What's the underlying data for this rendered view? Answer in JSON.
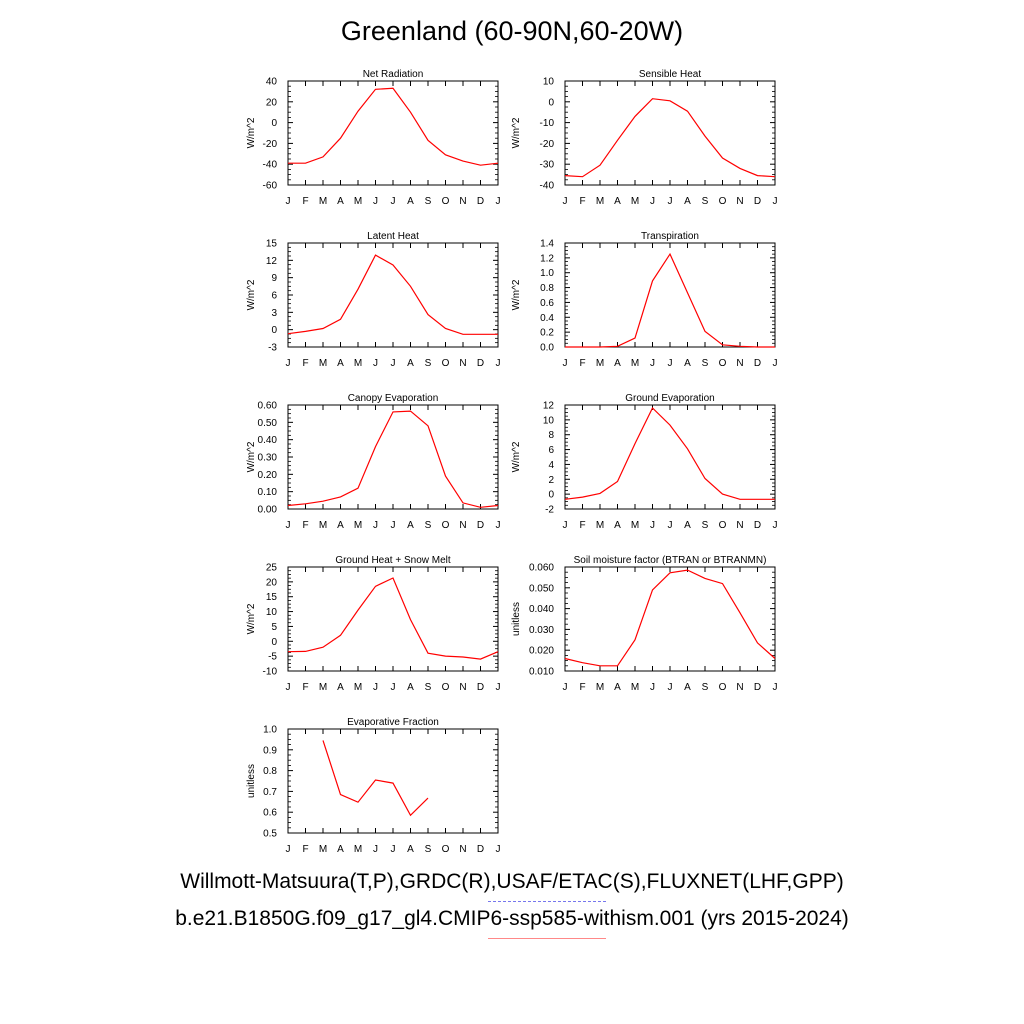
{
  "title": "Greenland (60-90N,60-20W)",
  "footer_line1": "Willmott-Matsuura(T,P),GRDC(R),USAF/ETAC(S),FLUXNET(LHF,GPP)",
  "footer_line2": "b.e21.B1850G.f09_g17_gl4.CMIP6-ssp585-withism.001 (yrs 2015-2024)",
  "line_color": "#ff0000",
  "legend_dash_colors": [
    "#7777ee",
    "#ff8888"
  ],
  "chart_data": [
    {
      "type": "line",
      "title": "Net Radiation",
      "ylabel": "W/m^2",
      "ylim": [
        -60,
        40
      ],
      "yticks": [
        {
          "v": 40,
          "t": "40"
        },
        {
          "v": 20,
          "t": "20"
        },
        {
          "v": 0,
          "t": "0"
        },
        {
          "v": -20,
          "t": "-20"
        },
        {
          "v": -40,
          "t": "-40"
        },
        {
          "v": -60,
          "t": "-60"
        }
      ],
      "categories": [
        "J",
        "F",
        "M",
        "A",
        "M",
        "J",
        "J",
        "A",
        "S",
        "O",
        "N",
        "D",
        "J"
      ],
      "values": [
        -39,
        -39,
        -33,
        -15,
        11,
        32,
        33,
        10,
        -17,
        -31,
        -37,
        -41,
        -39
      ]
    },
    {
      "type": "line",
      "title": "Sensible Heat",
      "ylabel": "W/m^2",
      "ylim": [
        -40,
        10
      ],
      "yticks": [
        {
          "v": 10,
          "t": "10"
        },
        {
          "v": 0,
          "t": "0"
        },
        {
          "v": -10,
          "t": "-10"
        },
        {
          "v": -20,
          "t": "-20"
        },
        {
          "v": -30,
          "t": "-30"
        },
        {
          "v": -40,
          "t": "-40"
        }
      ],
      "categories": [
        "J",
        "F",
        "M",
        "A",
        "M",
        "J",
        "J",
        "A",
        "S",
        "O",
        "N",
        "D",
        "J"
      ],
      "values": [
        -35.5,
        -36,
        -30.5,
        -18.5,
        -7,
        1.5,
        0.5,
        -4.5,
        -16.5,
        -27,
        -32,
        -35.5,
        -36
      ]
    },
    {
      "type": "line",
      "title": "Latent Heat",
      "ylabel": "W/m^2",
      "ylim": [
        -3,
        15
      ],
      "yticks": [
        {
          "v": 15,
          "t": "15"
        },
        {
          "v": 12,
          "t": "12"
        },
        {
          "v": 9,
          "t": "9"
        },
        {
          "v": 6,
          "t": "6"
        },
        {
          "v": 3,
          "t": "3"
        },
        {
          "v": 0,
          "t": "0"
        },
        {
          "v": -3,
          "t": "-3"
        }
      ],
      "categories": [
        "J",
        "F",
        "M",
        "A",
        "M",
        "J",
        "J",
        "A",
        "S",
        "O",
        "N",
        "D",
        "J"
      ],
      "values": [
        -0.7,
        -0.3,
        0.2,
        1.8,
        7,
        12.9,
        11.2,
        7.5,
        2.6,
        0.2,
        -0.8,
        -0.8,
        -0.8
      ]
    },
    {
      "type": "line",
      "title": "Transpiration",
      "ylabel": "W/m^2",
      "ylim": [
        0,
        1.4
      ],
      "yticks": [
        {
          "v": 1.4,
          "t": "1.4"
        },
        {
          "v": 1.2,
          "t": "1.2"
        },
        {
          "v": 1.0,
          "t": "1.0"
        },
        {
          "v": 0.8,
          "t": "0.8"
        },
        {
          "v": 0.6,
          "t": "0.6"
        },
        {
          "v": 0.4,
          "t": "0.4"
        },
        {
          "v": 0.2,
          "t": "0.2"
        },
        {
          "v": 0.0,
          "t": "0.0"
        }
      ],
      "categories": [
        "J",
        "F",
        "M",
        "A",
        "M",
        "J",
        "J",
        "A",
        "S",
        "O",
        "N",
        "D",
        "J"
      ],
      "values": [
        0.0,
        0.0,
        0.0,
        0.01,
        0.12,
        0.89,
        1.25,
        0.73,
        0.21,
        0.03,
        0.01,
        0.0,
        0.0
      ]
    },
    {
      "type": "line",
      "title": "Canopy Evaporation",
      "ylabel": "W/m^2",
      "ylim": [
        0,
        0.6
      ],
      "yticks": [
        {
          "v": 0.6,
          "t": "0.60"
        },
        {
          "v": 0.5,
          "t": "0.50"
        },
        {
          "v": 0.4,
          "t": "0.40"
        },
        {
          "v": 0.3,
          "t": "0.30"
        },
        {
          "v": 0.2,
          "t": "0.20"
        },
        {
          "v": 0.1,
          "t": "0.10"
        },
        {
          "v": 0.0,
          "t": "0.00"
        }
      ],
      "categories": [
        "J",
        "F",
        "M",
        "A",
        "M",
        "J",
        "J",
        "A",
        "S",
        "O",
        "N",
        "D",
        "J"
      ],
      "values": [
        0.02,
        0.03,
        0.045,
        0.07,
        0.12,
        0.36,
        0.56,
        0.565,
        0.48,
        0.19,
        0.035,
        0.01,
        0.02
      ]
    },
    {
      "type": "line",
      "title": "Ground Evaporation",
      "ylabel": "W/m^2",
      "ylim": [
        -2,
        12
      ],
      "yticks": [
        {
          "v": 12,
          "t": "12"
        },
        {
          "v": 10,
          "t": "10"
        },
        {
          "v": 8,
          "t": "8"
        },
        {
          "v": 6,
          "t": "6"
        },
        {
          "v": 4,
          "t": "4"
        },
        {
          "v": 2,
          "t": "2"
        },
        {
          "v": 0,
          "t": "0"
        },
        {
          "v": -2,
          "t": "-2"
        }
      ],
      "categories": [
        "J",
        "F",
        "M",
        "A",
        "M",
        "J",
        "J",
        "A",
        "S",
        "O",
        "N",
        "D",
        "J"
      ],
      "values": [
        -0.7,
        -0.4,
        0.1,
        1.7,
        6.8,
        11.6,
        9.3,
        6.1,
        2.1,
        0.0,
        -0.7,
        -0.7,
        -0.7
      ]
    },
    {
      "type": "line",
      "title": "Ground Heat + Snow Melt",
      "ylabel": "W/m^2",
      "ylim": [
        -10,
        25
      ],
      "yticks": [
        {
          "v": 25,
          "t": "25"
        },
        {
          "v": 20,
          "t": "20"
        },
        {
          "v": 15,
          "t": "15"
        },
        {
          "v": 10,
          "t": "10"
        },
        {
          "v": 5,
          "t": "5"
        },
        {
          "v": 0,
          "t": "0"
        },
        {
          "v": -5,
          "t": "-5"
        },
        {
          "v": -10,
          "t": "-10"
        }
      ],
      "categories": [
        "J",
        "F",
        "M",
        "A",
        "M",
        "J",
        "J",
        "A",
        "S",
        "O",
        "N",
        "D",
        "J"
      ],
      "values": [
        -3.5,
        -3.4,
        -2,
        2,
        10.5,
        18.5,
        21.3,
        7.3,
        -4,
        -5,
        -5.3,
        -6,
        -3.5
      ]
    },
    {
      "type": "line",
      "title": "Soil moisture factor (BTRAN or BTRANMN)",
      "ylabel": "unitless",
      "ylim": [
        0.01,
        0.06
      ],
      "yticks": [
        {
          "v": 0.06,
          "t": "0.060"
        },
        {
          "v": 0.05,
          "t": "0.050"
        },
        {
          "v": 0.04,
          "t": "0.040"
        },
        {
          "v": 0.03,
          "t": "0.030"
        },
        {
          "v": 0.02,
          "t": "0.020"
        },
        {
          "v": 0.01,
          "t": "0.010"
        }
      ],
      "categories": [
        "J",
        "F",
        "M",
        "A",
        "M",
        "J",
        "J",
        "A",
        "S",
        "O",
        "N",
        "D",
        "J"
      ],
      "values": [
        0.016,
        0.014,
        0.0125,
        0.0125,
        0.025,
        0.049,
        0.0572,
        0.0585,
        0.0545,
        0.052,
        0.038,
        0.0235,
        0.016
      ]
    },
    {
      "type": "line",
      "title": "Evaporative Fraction",
      "ylabel": "unitless",
      "ylim": [
        0.5,
        1.0
      ],
      "yticks": [
        {
          "v": 1.0,
          "t": "1.0"
        },
        {
          "v": 0.9,
          "t": "0.9"
        },
        {
          "v": 0.8,
          "t": "0.8"
        },
        {
          "v": 0.7,
          "t": "0.7"
        },
        {
          "v": 0.6,
          "t": "0.6"
        },
        {
          "v": 0.5,
          "t": "0.5"
        }
      ],
      "categories": [
        "J",
        "F",
        "M",
        "A",
        "M",
        "J",
        "J",
        "A",
        "S",
        "O",
        "N",
        "D",
        "J"
      ],
      "values": [
        null,
        null,
        0.945,
        0.685,
        0.648,
        0.755,
        0.74,
        0.585,
        0.668,
        null,
        null,
        null,
        null
      ]
    }
  ]
}
